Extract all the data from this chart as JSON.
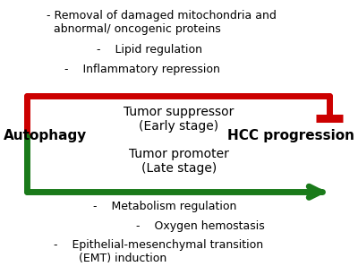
{
  "bg_color": "#ffffff",
  "autophagy_label": "Autophagy",
  "hcc_label": "HCC progression",
  "suppressor_label": "Tumor suppressor\n(Early stage)",
  "promoter_label": "Tumor promoter\n(Late stage)",
  "top_bullet1": "- Removal of damaged mitochondria and\n  abnormal/ oncogenic proteins",
  "top_bullet2": "     -    Lipid regulation",
  "top_bullet3": "  -    Inflammatory repression",
  "bot_bullet1": "    -    Metabolism regulation",
  "bot_bullet2": "         -    Oxygen hemostasis",
  "bot_bullet3": "  -    Epithelial-mesenchymal transition\n         (EMT) induction",
  "red_color": "#cc0000",
  "green_color": "#1a7a1a",
  "text_color": "#000000",
  "lw": 5.0,
  "figw": 4.0,
  "figh": 3.07,
  "dpi": 100
}
